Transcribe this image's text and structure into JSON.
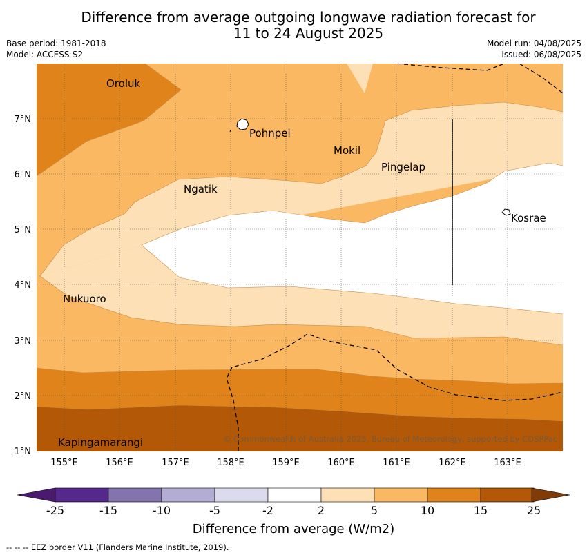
{
  "title_line1": "Difference from average outgoing longwave radiation forecast for",
  "title_line2": "11 to 24 August 2025",
  "base_period": "Base period: 1981-2018",
  "model": "Model: ACCESS-S2",
  "model_run": "Model run: 04/08/2025",
  "issued": "Issued: 06/08/2025",
  "lat_ticks": [
    "7°N",
    "6°N",
    "5°N",
    "4°N",
    "3°N",
    "2°N",
    "1°N"
  ],
  "lon_ticks": [
    "155°E",
    "156°E",
    "157°E",
    "158°E",
    "159°E",
    "160°E",
    "161°E",
    "162°E",
    "163°E"
  ],
  "places": [
    {
      "name": "Oroluk",
      "lon": 155.5,
      "lat": 7.6
    },
    {
      "name": "Pohnpei",
      "lon": 158.2,
      "lat": 6.9
    },
    {
      "name": "Mokil",
      "lon": 160.2,
      "lat": 6.4
    },
    {
      "name": "Pingelap",
      "lon": 160.7,
      "lat": 6.2
    },
    {
      "name": "Ngatik",
      "lon": 157.0,
      "lat": 5.8
    },
    {
      "name": "Kosrae",
      "lon": 163.0,
      "lat": 5.3
    },
    {
      "name": "Nukuoro",
      "lon": 154.9,
      "lat": 3.8
    },
    {
      "name": "Kapingamarangi",
      "lon": 154.8,
      "lat": 1.1
    }
  ],
  "copyright": "© Commonwealth of Australia 2025, Bureau of Meteorology, supported by COSPPac",
  "colorbar": {
    "labels": [
      "-25",
      "-15",
      "-10",
      "-5",
      "-2",
      "2",
      "5",
      "10",
      "15",
      "25"
    ],
    "colors": [
      "#4a1a6e",
      "#55298c",
      "#8474ad",
      "#b3acd3",
      "#dcdbee",
      "#ffffff",
      "#fde0b5",
      "#fbb862",
      "#e0831a",
      "#b35806",
      "#7f3b08"
    ],
    "title": "Difference from average (W/m2)"
  },
  "footnote": "--  --  -- EEZ border V11 (Flanders Marine Institute, 2019)."
}
